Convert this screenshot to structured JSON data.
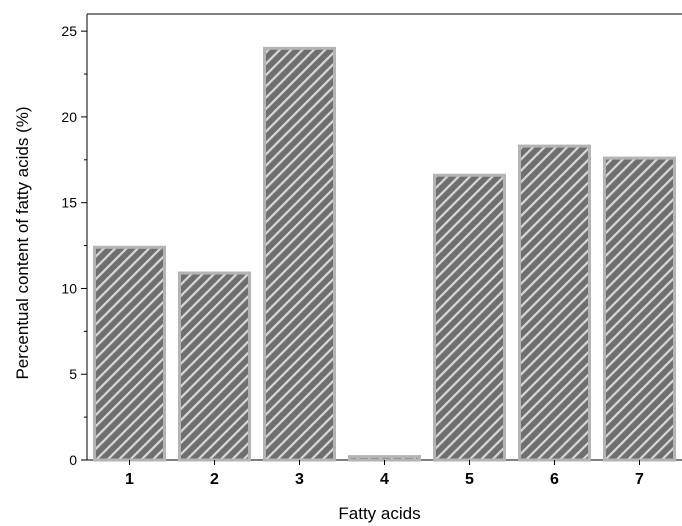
{
  "chart_data": {
    "type": "bar",
    "title": "",
    "xlabel": "Fatty acids",
    "ylabel": "Percentual content of fatty acids (%)",
    "categories": [
      "1",
      "2",
      "3",
      "4",
      "5",
      "6",
      "7"
    ],
    "values": [
      12.4,
      10.9,
      24.0,
      0.2,
      16.6,
      18.3,
      17.6
    ],
    "ylim": [
      0,
      26
    ],
    "yticks": [
      0,
      5,
      10,
      15,
      20,
      25
    ],
    "grid": false,
    "legend": "none",
    "bar_fill": "hatched diagonal",
    "colors": {
      "bar_fill": "#6f6f6f",
      "bar_hatch": "#d9d9d9",
      "bar_edge": "#b4b4b4",
      "axis": "#000000"
    }
  }
}
